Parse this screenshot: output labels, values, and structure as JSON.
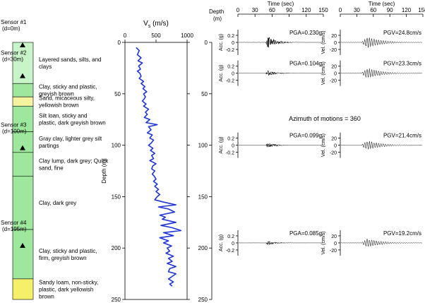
{
  "chart_data": {
    "type": "line",
    "title": "",
    "soil_column": {
      "depth_range_m": [
        0,
        250
      ],
      "layers": [
        {
          "top_m": 0,
          "bottom_m": 40,
          "color": "#c8f5c8",
          "description": "Layered sands, silts, and clays"
        },
        {
          "top_m": 40,
          "bottom_m": 53,
          "color": "#9ee89e",
          "description": "Clay, sticky and plastic, greyish brown"
        },
        {
          "top_m": 53,
          "bottom_m": 62,
          "color": "#f5f3a0",
          "description": "Sand, micaceous silty, yellowish brown"
        },
        {
          "top_m": 62,
          "bottom_m": 87,
          "color": "#9ee89e",
          "description": "Silt loan, sticky and plastic, dark greyish brown"
        },
        {
          "top_m": 87,
          "bottom_m": 107,
          "color": "#9ee89e",
          "description": "Gray clay, lighter grey silt partings"
        },
        {
          "top_m": 107,
          "bottom_m": 130,
          "color": "#9ee89e",
          "description": "Clay lump, dark grey; Quick sand, fine"
        },
        {
          "top_m": 130,
          "bottom_m": 182,
          "color": "#9ee89e",
          "description": "Clay, dark grey"
        },
        {
          "top_m": 182,
          "bottom_m": 230,
          "color": "#9ee89e",
          "description": "Clay, sticky and plastic, firm, greyish brown"
        },
        {
          "top_m": 230,
          "bottom_m": 250,
          "color": "#f5ef6a",
          "description": "Sandy loam, non-sticky, plastic, dark yellowish brown"
        }
      ],
      "sensors": [
        {
          "name": "Sensor #1",
          "depth_label": "(d=0m)",
          "depth_m": 0
        },
        {
          "name": "Sensor #2",
          "depth_label": "(d=30m)",
          "depth_m": 30
        },
        {
          "name": "Sensor #3",
          "depth_label": "(d=100m)",
          "depth_m": 100
        },
        {
          "name": "Sensor #4",
          "depth_label": "(d=195m)",
          "depth_m": 195
        }
      ]
    },
    "vs_profile": {
      "xlabel": "V",
      "xlabel_sub": "s",
      "xlabel_unit": " (m/s)",
      "ylabel": "Depth (m)",
      "xlim": [
        0,
        1000
      ],
      "ylim": [
        0,
        250
      ],
      "xticks": [
        0,
        500,
        1000
      ],
      "yticks": [
        0,
        50,
        100,
        150,
        200,
        250
      ],
      "color": "#1f35d6",
      "depth": [
        5,
        8,
        12,
        15,
        18,
        20,
        23,
        26,
        28,
        30,
        33,
        35,
        38,
        40,
        43,
        45,
        48,
        50,
        53,
        55,
        57,
        60,
        62,
        65,
        68,
        70,
        73,
        75,
        78,
        80,
        82,
        85,
        88,
        90,
        93,
        95,
        98,
        100,
        103,
        105,
        108,
        110,
        113,
        115,
        118,
        120,
        123,
        125,
        128,
        130,
        133,
        135,
        138,
        140,
        143,
        145,
        148,
        150,
        153,
        155,
        158,
        160,
        162,
        165,
        168,
        170,
        172,
        175,
        178,
        180,
        183,
        185,
        188,
        190,
        193,
        195,
        198,
        200,
        203,
        205,
        208,
        210,
        213,
        215,
        218,
        220,
        223,
        225,
        228,
        230,
        233,
        235,
        237
      ],
      "vs": [
        180,
        230,
        200,
        260,
        210,
        280,
        220,
        250,
        200,
        240,
        260,
        230,
        300,
        260,
        320,
        290,
        350,
        300,
        330,
        310,
        280,
        340,
        300,
        380,
        330,
        360,
        310,
        400,
        340,
        520,
        380,
        420,
        360,
        440,
        400,
        460,
        420,
        380,
        450,
        410,
        480,
        430,
        460,
        400,
        500,
        450,
        430,
        480,
        440,
        470,
        500,
        460,
        520,
        480,
        540,
        500,
        560,
        520,
        480,
        600,
        820,
        540,
        700,
        800,
        560,
        650,
        600,
        820,
        580,
        750,
        900,
        620,
        780,
        560,
        700,
        620,
        750,
        680,
        720,
        660,
        780,
        700,
        760,
        680,
        820,
        720,
        700,
        820,
        750,
        700,
        780,
        720,
        760
      ]
    },
    "time_series_axes": {
      "time_xlabel": "Time (sec)",
      "time_xlim": [
        0,
        150
      ],
      "time_xticks": [
        0,
        30,
        60,
        90,
        120,
        150
      ],
      "depth_axis_label": "Depth",
      "depth_axis_unit": "(m)",
      "depth_ticks": [
        0,
        50,
        100,
        150,
        200,
        250
      ],
      "acc_label": "Acc. (g)",
      "acc_ticks": [
        0.2,
        0,
        -0.2
      ],
      "vel_label": "Vel. (cm/s)",
      "vel_ticks": [
        20,
        0,
        -20
      ],
      "annotation": "Azimuth of motions = 360"
    },
    "series": [
      {
        "name": "Sensor #1 acceleration",
        "depth_m": 0,
        "pga_label": "PGA=0.230g",
        "peak_g": 0.23
      },
      {
        "name": "Sensor #2 acceleration",
        "depth_m": 30,
        "pga_label": "PGA=0.104g",
        "peak_g": 0.104
      },
      {
        "name": "Sensor #3 acceleration",
        "depth_m": 100,
        "pga_label": "PGA=0.099g",
        "peak_g": 0.099
      },
      {
        "name": "Sensor #4 acceleration",
        "depth_m": 195,
        "pga_label": "PGA=0.085g",
        "peak_g": 0.085
      },
      {
        "name": "Sensor #1 velocity",
        "depth_m": 0,
        "pgv_label": "PGV=24.8cm/s",
        "peak_cms": 24.8
      },
      {
        "name": "Sensor #2 velocity",
        "depth_m": 30,
        "pgv_label": "PGV=23.3cm/s",
        "peak_cms": 23.3
      },
      {
        "name": "Sensor #3 velocity",
        "depth_m": 100,
        "pgv_label": "PGV=21.4cm/s",
        "peak_cms": 21.4
      },
      {
        "name": "Sensor #4 velocity",
        "depth_m": 195,
        "pgv_label": "PGV=19.2cm/s",
        "peak_cms": 19.2
      }
    ]
  }
}
